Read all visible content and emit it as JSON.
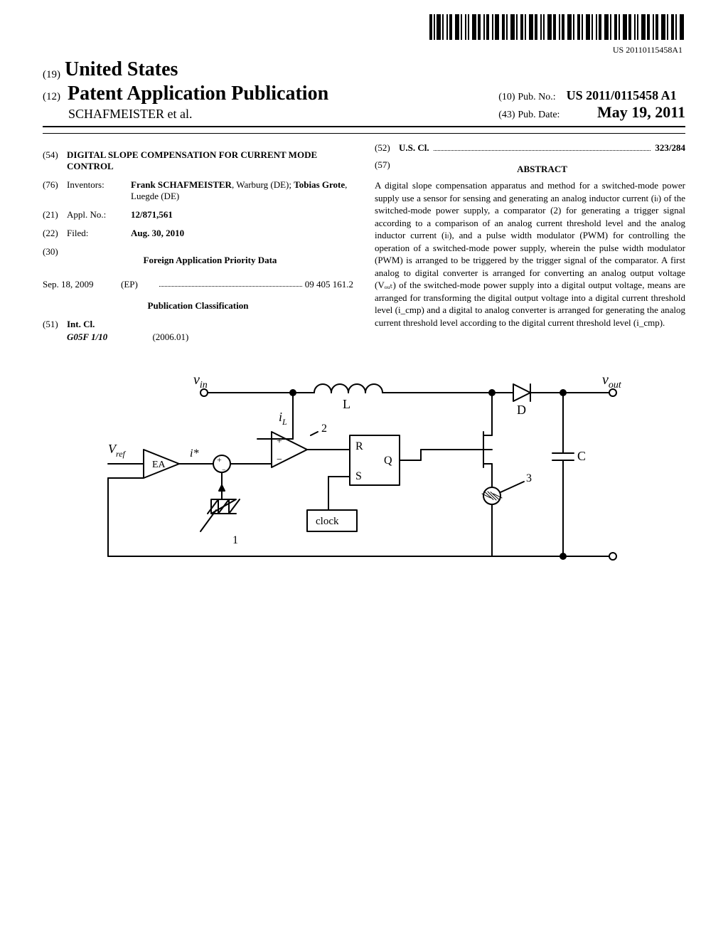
{
  "barcode_label": "US 20110115458A1",
  "header": {
    "country_code": "(19)",
    "country": "United States",
    "pub_code": "(12)",
    "pub_type": "Patent Application Publication",
    "authors": "SCHAFMEISTER et al.",
    "pubno_code": "(10)",
    "pubno_label": "Pub. No.:",
    "pubno_value": "US 2011/0115458 A1",
    "pubdate_code": "(43)",
    "pubdate_label": "Pub. Date:",
    "pubdate_value": "May 19, 2011"
  },
  "left": {
    "title_code": "(54)",
    "title": "DIGITAL SLOPE COMPENSATION FOR CURRENT MODE CONTROL",
    "inventors_code": "(76)",
    "inventors_label": "Inventors:",
    "inventor1_name": "Frank SCHAFMEISTER",
    "inventor1_loc": ", Warburg (DE); ",
    "inventor2_name": "Tobias Grote",
    "inventor2_loc": ", Luegde (DE)",
    "applno_code": "(21)",
    "applno_label": "Appl. No.:",
    "applno_value": "12/871,561",
    "filed_code": "(22)",
    "filed_label": "Filed:",
    "filed_value": "Aug. 30, 2010",
    "priority_code": "(30)",
    "priority_heading": "Foreign Application Priority Data",
    "priority_date": "Sep. 18, 2009",
    "priority_cc": "(EP)",
    "priority_num": "09 405 161.2",
    "class_heading": "Publication Classification",
    "intcl_code": "(51)",
    "intcl_label": "Int. Cl.",
    "intcl_value": "G05F 1/10",
    "intcl_year": "(2006.01)"
  },
  "right": {
    "uscl_code": "(52)",
    "uscl_label": "U.S. Cl.",
    "uscl_value": "323/284",
    "abstract_code": "(57)",
    "abstract_heading": "ABSTRACT",
    "abstract_text": "A digital slope compensation apparatus and method for a switched-mode power supply use a sensor for sensing and generating an analog inductor current (iₗ) of the switched-mode power supply, a comparator (2) for generating a trigger signal according to a comparison of an analog current threshold level and the analog inductor current (iₗ), and a pulse width modulator (PWM) for controlling the operation of a switched-mode power supply, wherein the pulse width modulator (PWM) is arranged to be triggered by the trigger signal of the comparator. A first analog to digital converter is arranged for converting an analog output voltage (Vₒᵤₜ) of the switched-mode power supply into a digital output voltage, means are arranged for transforming the digital output voltage into a digital current threshold level (i_cmp) and a digital to analog converter is arranged for generating the analog current threshold level according to the digital current threshold level (i_cmp)."
  },
  "figure": {
    "labels": {
      "vin": "v",
      "vin_sub": "in",
      "vout": "v",
      "vout_sub": "out",
      "vref": "V",
      "vref_sub": "ref",
      "iL": "i",
      "iL_sub": "L",
      "istar": "i*",
      "EA": "EA",
      "L": "L",
      "D": "D",
      "C": "C",
      "R": "R",
      "Q": "Q",
      "S": "S",
      "two": "2",
      "one": "1",
      "three": "3",
      "clock": "clock"
    },
    "colors": {
      "stroke": "#000000",
      "fill_bg": "#ffffff"
    },
    "stroke_width": 2
  }
}
